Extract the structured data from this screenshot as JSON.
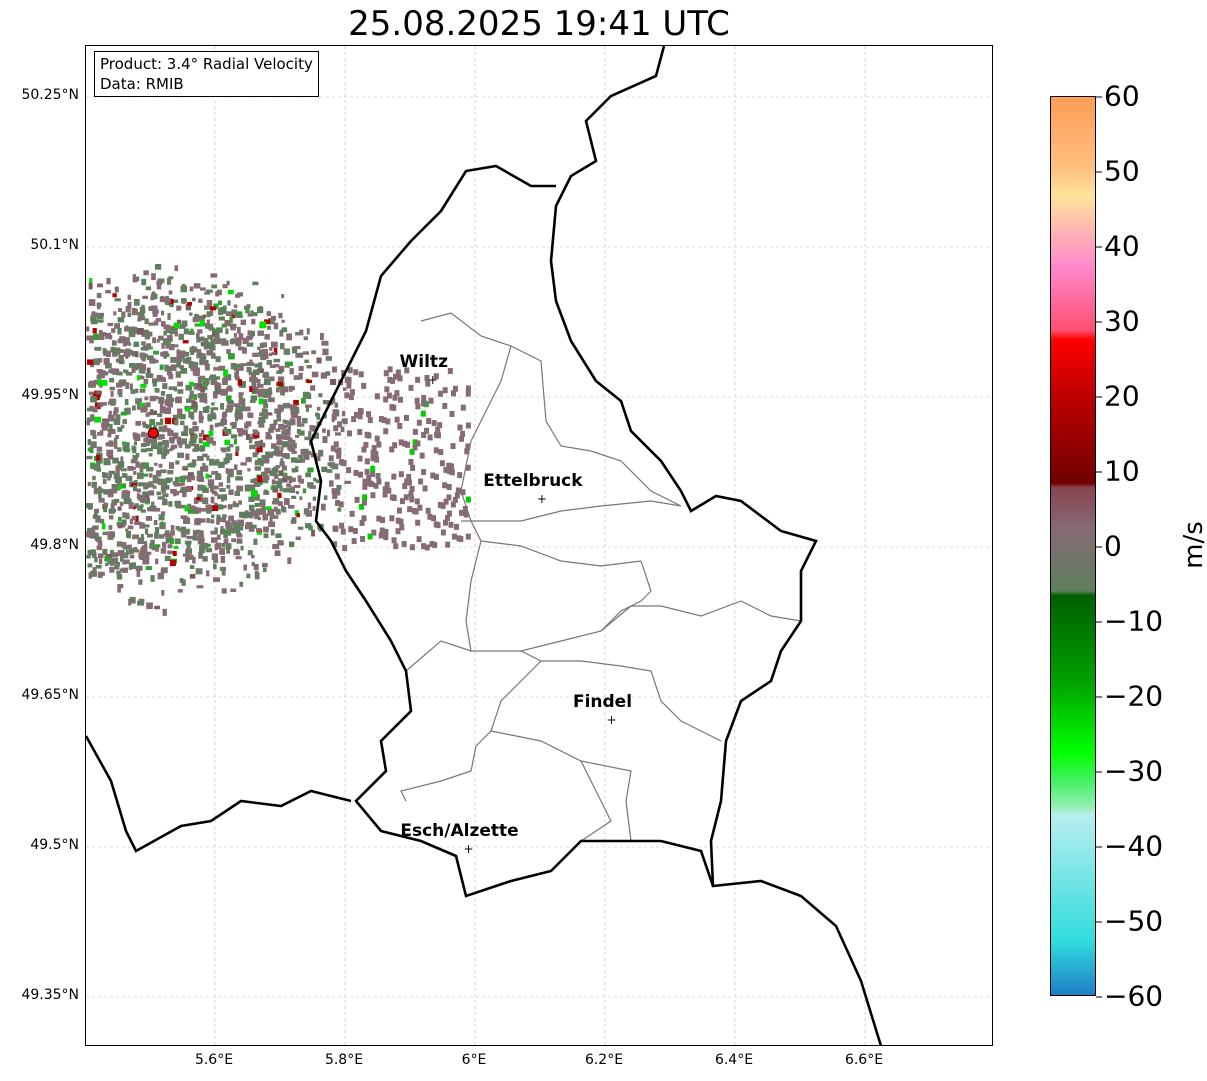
{
  "title": "25.08.2025 19:41 UTC",
  "info": {
    "line1": "Product: 3.4° Radial Velocity",
    "line2": "Data: RMIB"
  },
  "lat_labels": [
    {
      "lat": 50.25,
      "text": "50.25°N"
    },
    {
      "lat": 50.1,
      "text": "50.1°N"
    },
    {
      "lat": 49.95,
      "text": "49.95°N"
    },
    {
      "lat": 49.8,
      "text": "49.8°N"
    },
    {
      "lat": 49.65,
      "text": "49.65°N"
    },
    {
      "lat": 49.5,
      "text": "49.5°N"
    },
    {
      "lat": 49.35,
      "text": "49.35°N"
    }
  ],
  "lon_labels": [
    {
      "lon": 5.6,
      "text": "5.6°E"
    },
    {
      "lon": 5.8,
      "text": "5.8°E"
    },
    {
      "lon": 6.0,
      "text": "6°E"
    },
    {
      "lon": 6.2,
      "text": "6.2°E"
    },
    {
      "lon": 6.4,
      "text": "6.4°E"
    },
    {
      "lon": 6.6,
      "text": "6.6°E"
    }
  ],
  "cities": [
    {
      "name": "Wiltz",
      "lon": 5.935,
      "lat": 49.967
    },
    {
      "name": "Ettelbruck",
      "lon": 6.103,
      "lat": 49.848
    },
    {
      "name": "Findel",
      "lon": 6.21,
      "lat": 49.627
    },
    {
      "name": "Esch/Alzette",
      "lon": 5.99,
      "lat": 49.498
    }
  ],
  "radar_site": {
    "lon": 5.505,
    "lat": 49.914,
    "color": "#ff0000"
  },
  "colorbar": {
    "unit": "m/s",
    "min": -60,
    "max": 60,
    "ticks": [
      "60",
      "50",
      "40",
      "30",
      "20",
      "10",
      "0",
      "−10",
      "−20",
      "−30",
      "−40",
      "−50",
      "−60"
    ]
  }
}
